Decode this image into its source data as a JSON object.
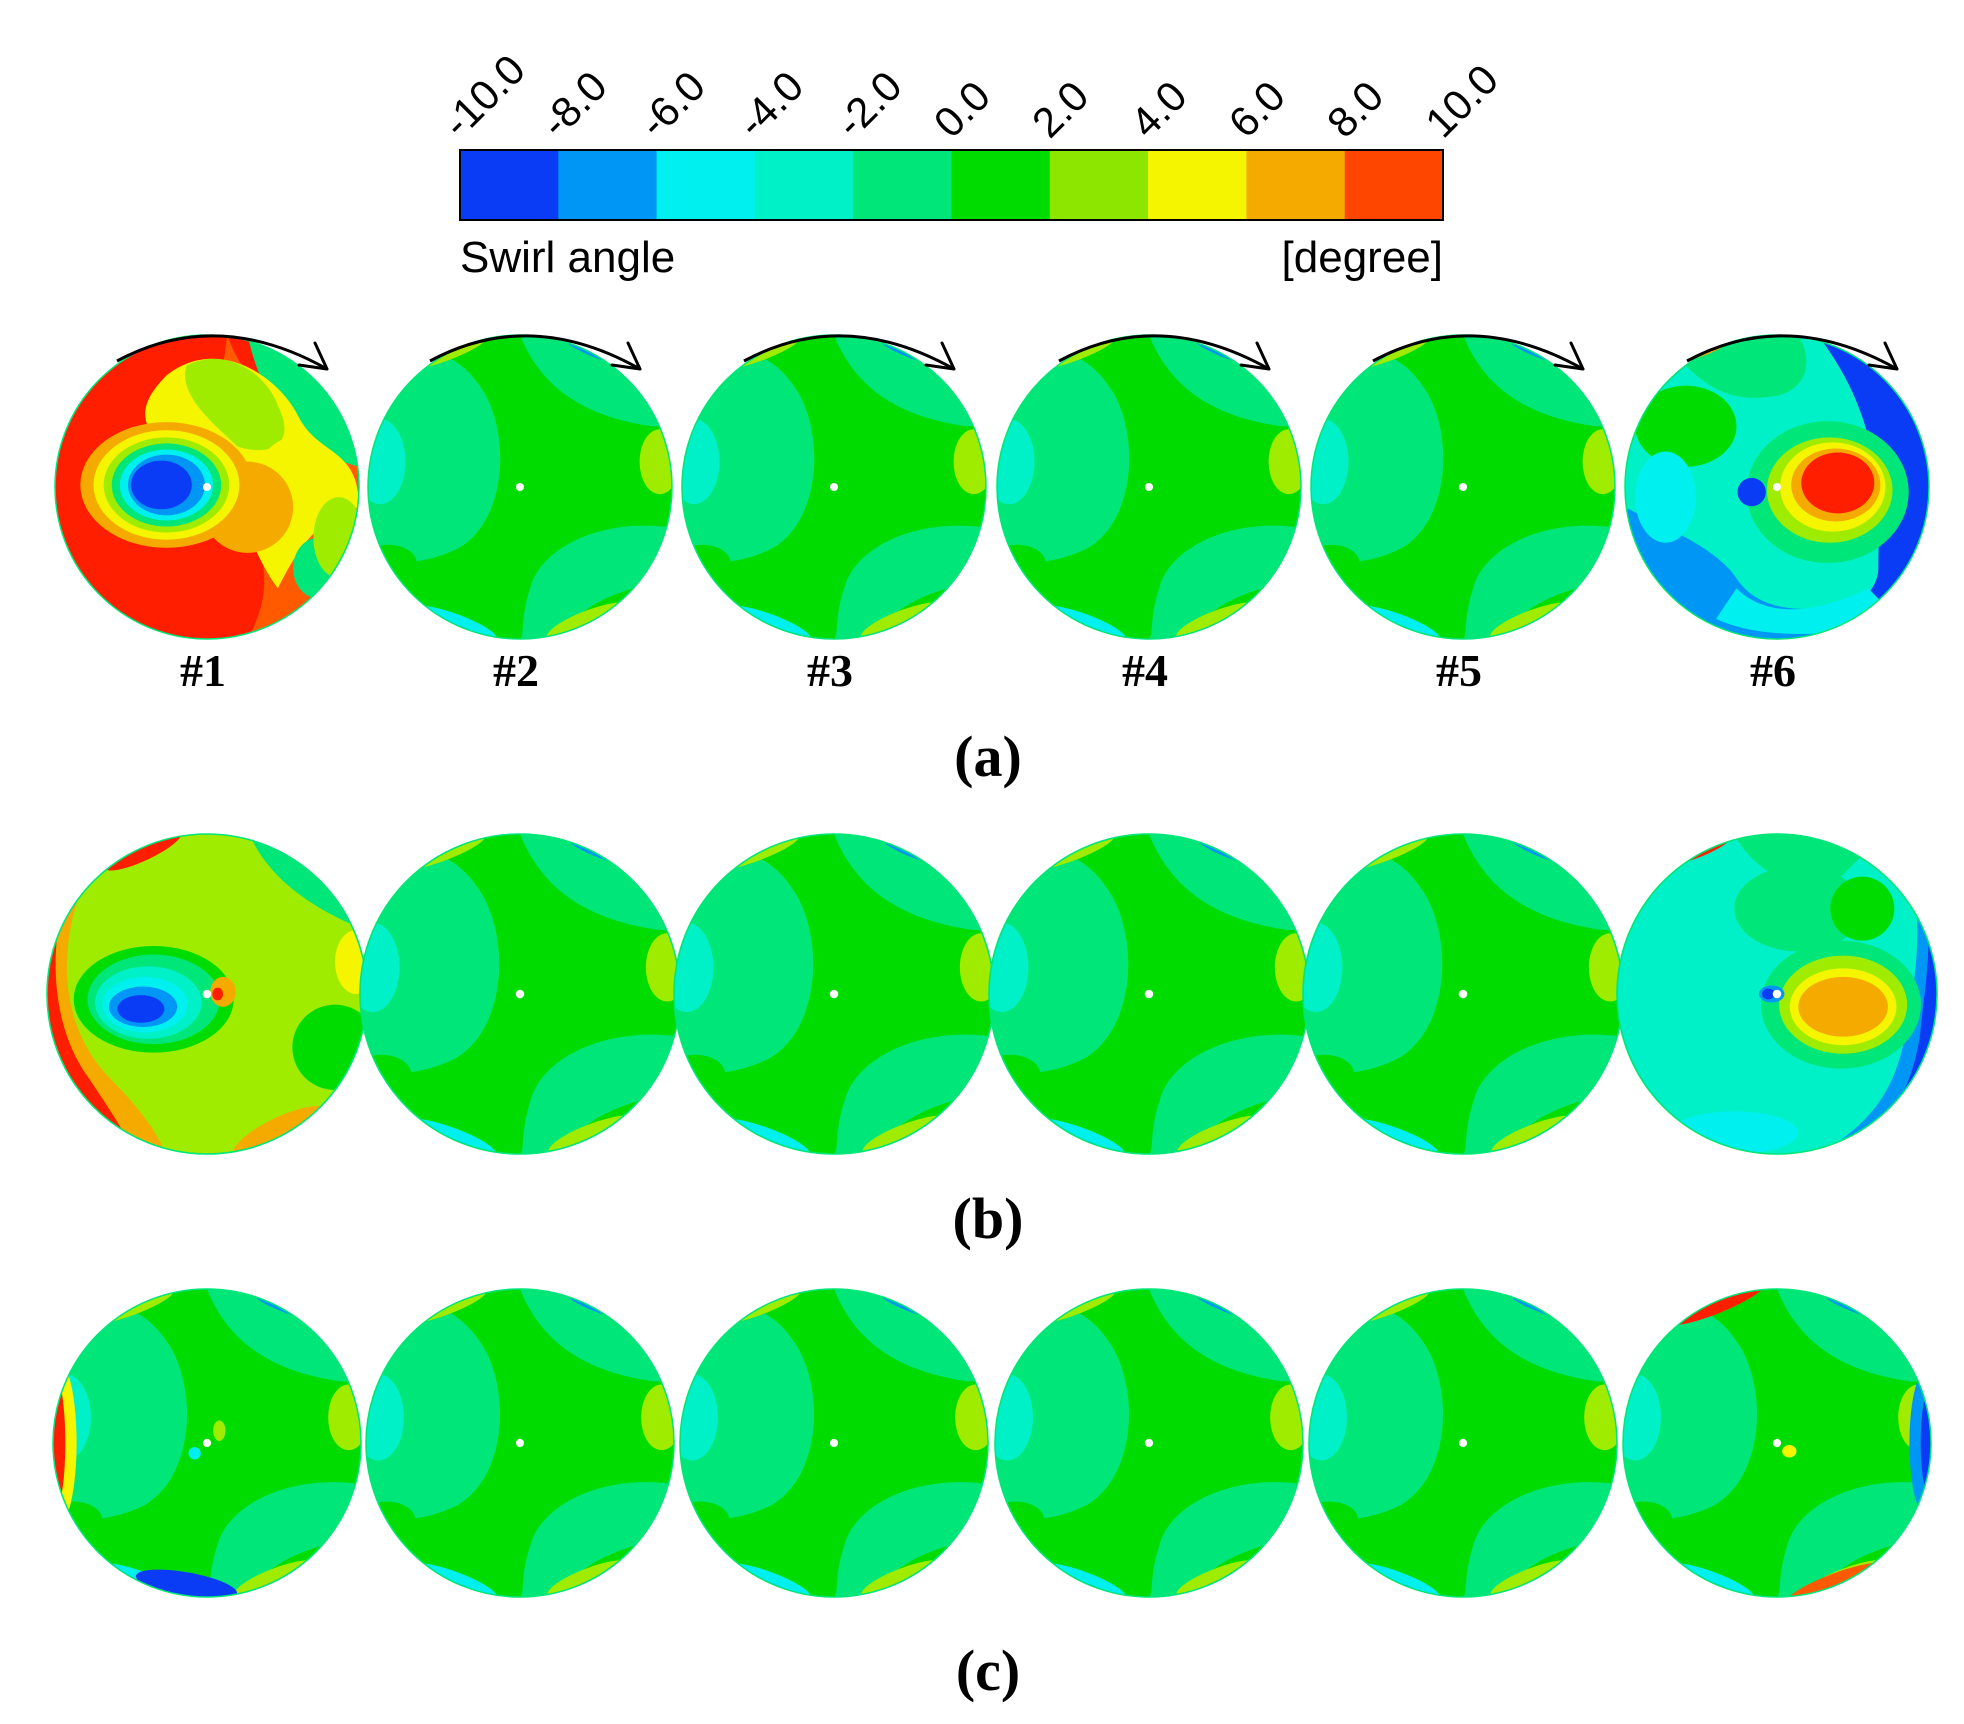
{
  "colorbar": {
    "ticks": [
      "-10.0",
      "-8.0",
      "-6.0",
      "-4.0",
      "-2.0",
      "0.0",
      "2.0",
      "4.0",
      "6.0",
      "8.0",
      "10.0"
    ],
    "colors": [
      "#0a3cf5",
      "#0096f5",
      "#00f0f0",
      "#00f0c8",
      "#00e678",
      "#00dc00",
      "#8ce600",
      "#f5f500",
      "#f5aa00",
      "#ff4600"
    ],
    "title": "Swirl angle",
    "unit": "[degree]"
  },
  "probe_labels": [
    "#1",
    "#2",
    "#3",
    "#4",
    "#5",
    "#6"
  ],
  "row_labels": [
    "(a)",
    "(b)",
    "(c)"
  ],
  "rotation_arrow": "clockwise-arrow-icon",
  "palette": {
    "red": "#ff1e00",
    "orange_red": "#ff5a00",
    "orange": "#f5aa00",
    "yellow": "#f5f500",
    "yellow_green": "#a0ec00",
    "green": "#00dc00",
    "spring_green": "#00e678",
    "aqua_green": "#00f0c8",
    "cyan": "#00f0f0",
    "sky_blue": "#0096f5",
    "blue": "#0a3cf5"
  }
}
